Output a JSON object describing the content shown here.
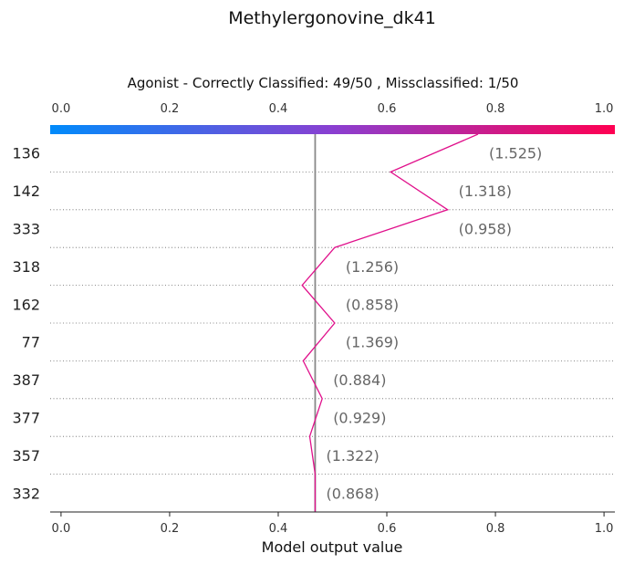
{
  "title": "Methylergonovine_dk41",
  "subtitle": "Agonist - Correctly Classified: 49/50 , Missclassified: 1/50",
  "xlabel": "Model output value",
  "chart_data": {
    "type": "line",
    "title": "Methylergonovine_dk41",
    "subtitle": "Agonist - Correctly Classified: 49/50 , Missclassified: 1/50",
    "xlabel": "Model output value",
    "ylabel": "",
    "xlim": [
      -0.02,
      1.02
    ],
    "xticks": [
      "0.0",
      "0.2",
      "0.4",
      "0.6",
      "0.8",
      "1.0"
    ],
    "xtick_values": [
      0.0,
      0.2,
      0.4,
      0.6,
      0.8,
      1.0
    ],
    "reference_value": 0.468,
    "features": [
      {
        "label": "136",
        "value_label": "(1.525)"
      },
      {
        "label": "142",
        "value_label": "(1.318)"
      },
      {
        "label": "333",
        "value_label": "(0.958)"
      },
      {
        "label": "318",
        "value_label": "(1.256)"
      },
      {
        "label": "162",
        "value_label": "(0.858)"
      },
      {
        "label": "77",
        "value_label": "(1.369)"
      },
      {
        "label": "387",
        "value_label": "(0.884)"
      },
      {
        "label": "377",
        "value_label": "(0.929)"
      },
      {
        "label": "357",
        "value_label": "(1.322)"
      },
      {
        "label": "332",
        "value_label": "(0.868)"
      }
    ],
    "path_values": [
      0.768,
      0.607,
      0.712,
      0.504,
      0.444,
      0.504,
      0.446,
      0.481,
      0.458,
      0.468,
      0.468
    ],
    "colorbar": {
      "from": "#008bfb",
      "mid": "#8a3fd1",
      "to": "#ff0052"
    },
    "line_color": "#e0108b",
    "grid": "dotted horizontal",
    "legend": "none"
  }
}
